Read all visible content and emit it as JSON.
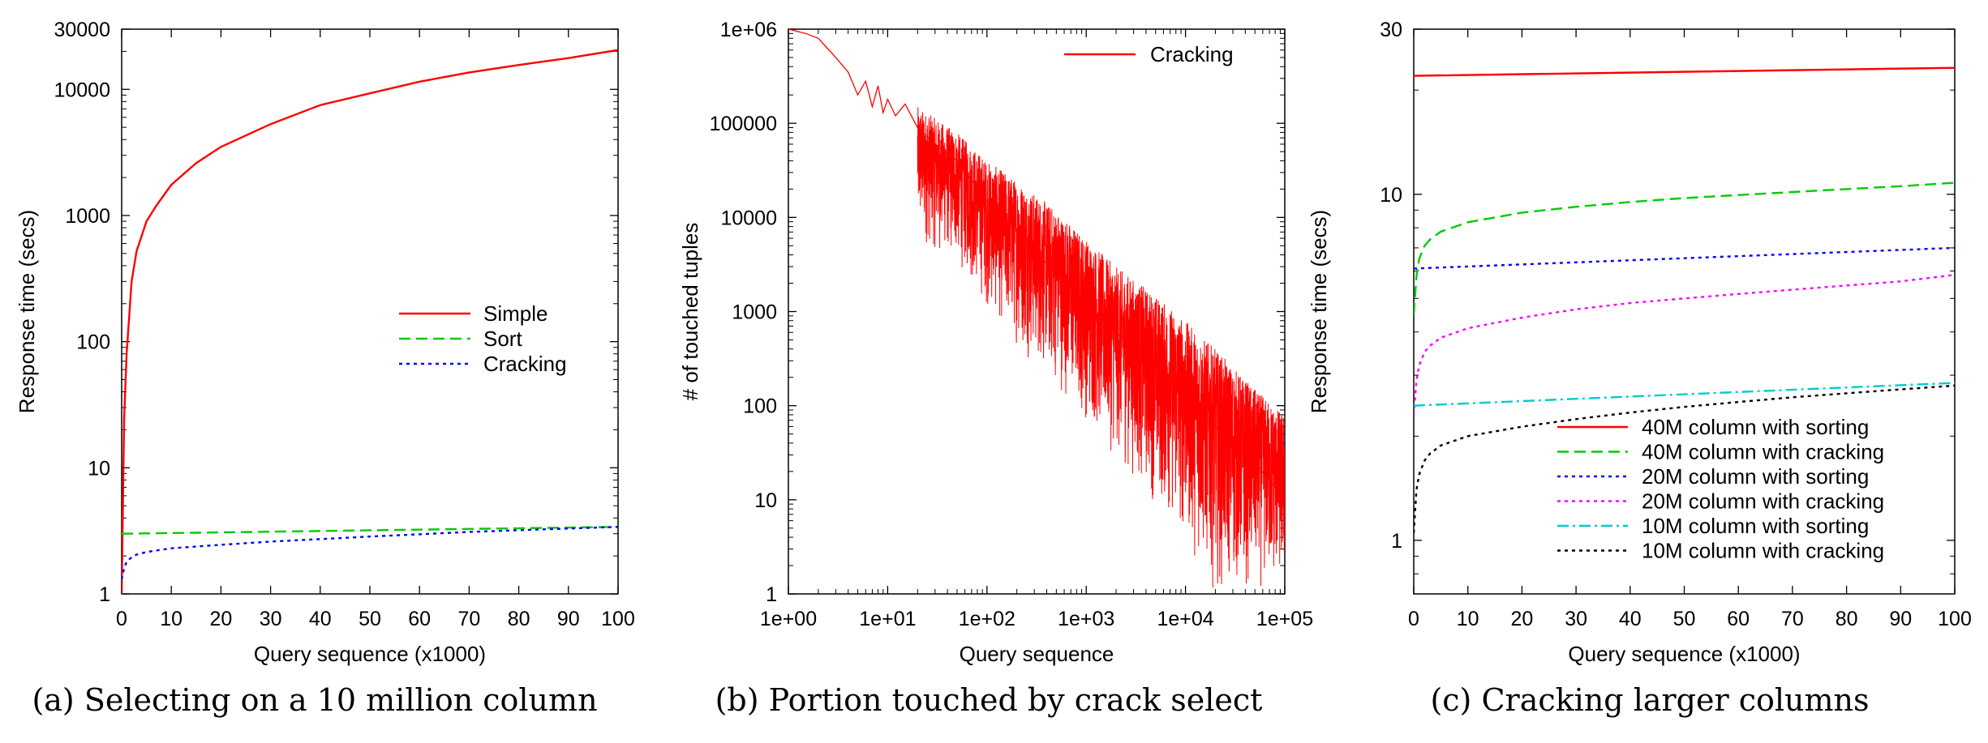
{
  "chart_data": [
    {
      "type": "line",
      "caption": "(a) Selecting on a 10 million column",
      "xlabel": "Query sequence (x1000)",
      "ylabel": "Response time (secs)",
      "xscale": "linear",
      "yscale": "log",
      "xlim": [
        0,
        100
      ],
      "ylim": [
        1,
        30000
      ],
      "x_ticks": [
        "0",
        "10",
        "20",
        "30",
        "40",
        "50",
        "60",
        "70",
        "80",
        "90",
        "100"
      ],
      "y_ticks": [
        "1",
        "10",
        "100",
        "1000",
        "10000",
        "30000"
      ],
      "grid": false,
      "legend_position": "center-right",
      "series": [
        {
          "name": "Simple",
          "color": "#ff0000",
          "dash": "solid",
          "x": [
            0,
            0.5,
            1,
            2,
            3,
            5,
            7,
            10,
            15,
            20,
            30,
            40,
            50,
            60,
            70,
            80,
            90,
            100
          ],
          "y": [
            1,
            25,
            80,
            300,
            520,
            900,
            1200,
            1750,
            2600,
            3500,
            5300,
            7500,
            9300,
            11500,
            13600,
            15600,
            17700,
            20500
          ]
        },
        {
          "name": "Sort",
          "color": "#00cc00",
          "dash": "dashed",
          "x": [
            0,
            100
          ],
          "y": [
            3.0,
            3.4
          ]
        },
        {
          "name": "Cracking",
          "color": "#0000ff",
          "dash": "dotted",
          "x": [
            0,
            0.5,
            1,
            2,
            3,
            5,
            10,
            20,
            30,
            40,
            50,
            60,
            70,
            80,
            90,
            100
          ],
          "y": [
            1.3,
            1.6,
            1.8,
            1.95,
            2.05,
            2.15,
            2.3,
            2.45,
            2.6,
            2.72,
            2.85,
            2.97,
            3.1,
            3.2,
            3.3,
            3.4
          ]
        }
      ]
    },
    {
      "type": "line",
      "caption": "(b) Portion touched by crack select",
      "xlabel": "Query sequence",
      "ylabel": "# of touched tuples",
      "xscale": "log",
      "yscale": "log",
      "xlim": [
        1,
        100000
      ],
      "ylim": [
        1,
        1000000
      ],
      "x_ticks": [
        "1e+00",
        "1e+01",
        "1e+02",
        "1e+03",
        "1e+04",
        "1e+05"
      ],
      "y_ticks": [
        "1",
        "10",
        "100",
        "1000",
        "10000",
        "100000",
        "1e+06"
      ],
      "grid": false,
      "legend_position": "top-right",
      "series": [
        {
          "name": "Cracking",
          "color": "#ff0000",
          "dash": "solid",
          "x": [
            1,
            1.5,
            2,
            3,
            4,
            5,
            6,
            7,
            8,
            9,
            10,
            12,
            15,
            20,
            30,
            50,
            100,
            200,
            500,
            1000,
            2000,
            5000,
            10000,
            20000,
            50000,
            100000
          ],
          "y": [
            1000000,
            900000,
            800000,
            500000,
            350000,
            200000,
            280000,
            150000,
            250000,
            130000,
            180000,
            120000,
            160000,
            90000,
            60000,
            40000,
            15000,
            7000,
            2500,
            1200,
            600,
            250,
            120,
            60,
            25,
            10
          ],
          "noise_band": {
            "x": [
              20,
              50,
              100,
              200,
              500,
              1000,
              2000,
              5000,
              10000,
              20000,
              50000,
              100000
            ],
            "upper": [
              150000,
              80000,
              40000,
              25000,
              12000,
              6000,
              3000,
              1500,
              800,
              400,
              150,
              80
            ],
            "lower": [
              5000,
              3000,
              1000,
              400,
              150,
              60,
              25,
              8,
              3,
              1,
              1,
              1
            ]
          }
        }
      ]
    },
    {
      "type": "line",
      "caption": "(c) Cracking larger columns",
      "xlabel": "Query sequence (x1000)",
      "ylabel": "Response time (secs)",
      "xscale": "linear",
      "yscale": "log",
      "xlim": [
        0,
        100
      ],
      "ylim": [
        0.7,
        30
      ],
      "x_ticks": [
        "0",
        "10",
        "20",
        "30",
        "40",
        "50",
        "60",
        "70",
        "80",
        "90",
        "100"
      ],
      "y_ticks": [
        "1",
        "10",
        "30"
      ],
      "grid": false,
      "legend_position": "bottom-right",
      "series": [
        {
          "name": "40M column with sorting",
          "color": "#ff0000",
          "dash": "solid",
          "x": [
            0,
            100
          ],
          "y": [
            22.0,
            23.2
          ]
        },
        {
          "name": "40M column with cracking",
          "color": "#00cc00",
          "dash": "dashed",
          "x": [
            0,
            0.5,
            1,
            2,
            3,
            5,
            10,
            20,
            30,
            40,
            50,
            60,
            70,
            80,
            90,
            100
          ],
          "y": [
            4.5,
            5.8,
            6.5,
            7.1,
            7.4,
            7.8,
            8.3,
            8.85,
            9.2,
            9.5,
            9.75,
            9.95,
            10.15,
            10.35,
            10.55,
            10.8
          ]
        },
        {
          "name": "20M column with sorting",
          "color": "#0000ff",
          "dash": "dotted",
          "x": [
            0,
            100
          ],
          "y": [
            6.1,
            7.0
          ]
        },
        {
          "name": "20M column with cracking",
          "color": "#ff00ff",
          "dash": "dotted",
          "x": [
            0,
            0.5,
            1,
            2,
            3,
            5,
            10,
            20,
            30,
            40,
            50,
            60,
            70,
            80,
            90,
            100
          ],
          "y": [
            2.3,
            2.9,
            3.2,
            3.5,
            3.65,
            3.85,
            4.1,
            4.4,
            4.65,
            4.85,
            5.0,
            5.15,
            5.3,
            5.45,
            5.6,
            5.85
          ]
        },
        {
          "name": "10M column with sorting",
          "color": "#00cccc",
          "dash": "dashdot",
          "x": [
            0,
            100
          ],
          "y": [
            2.45,
            2.85
          ]
        },
        {
          "name": "10M column with cracking",
          "color": "#000000",
          "dash": "dotted",
          "x": [
            0,
            0.5,
            1,
            2,
            3,
            5,
            10,
            20,
            30,
            40,
            50,
            60,
            70,
            80,
            90,
            100
          ],
          "y": [
            1.05,
            1.4,
            1.55,
            1.7,
            1.78,
            1.88,
            2.0,
            2.13,
            2.24,
            2.34,
            2.43,
            2.51,
            2.59,
            2.66,
            2.73,
            2.8
          ]
        }
      ]
    }
  ]
}
